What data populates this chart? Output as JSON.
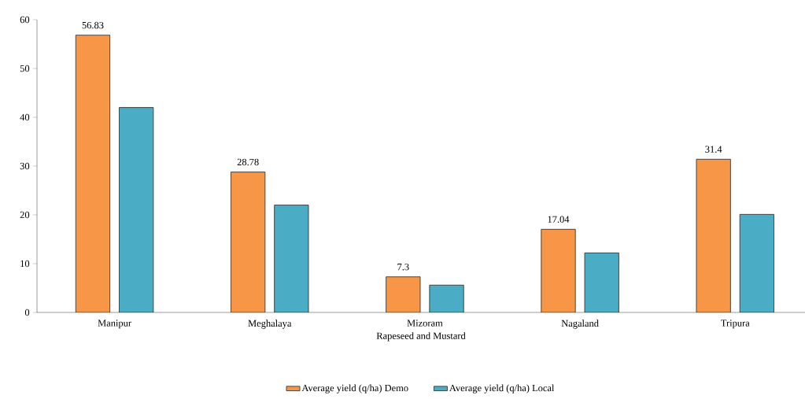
{
  "chart_data": {
    "type": "bar",
    "xlabel": "Rapeseed and Mustard",
    "categories": [
      "Manipur",
      "Meghalaya",
      "Mizoram",
      "Nagaland",
      "Tripura"
    ],
    "series": [
      {
        "name": "Average yield (q/ha) Demo",
        "color": "#f79646",
        "values": [
          56.83,
          28.78,
          7.3,
          17.04,
          31.4
        ],
        "value_labels": [
          "56.83",
          "28.78",
          "7.3",
          "17.04",
          "31.4"
        ]
      },
      {
        "name": "Average yield (q/ha) Local",
        "color": "#4bacc6",
        "values": [
          42,
          22,
          5.6,
          12.2,
          20.1
        ]
      }
    ],
    "ylim": [
      0,
      60
    ],
    "yticks": [
      0,
      10,
      20,
      30,
      40,
      50,
      60
    ],
    "legend": "bottom"
  }
}
